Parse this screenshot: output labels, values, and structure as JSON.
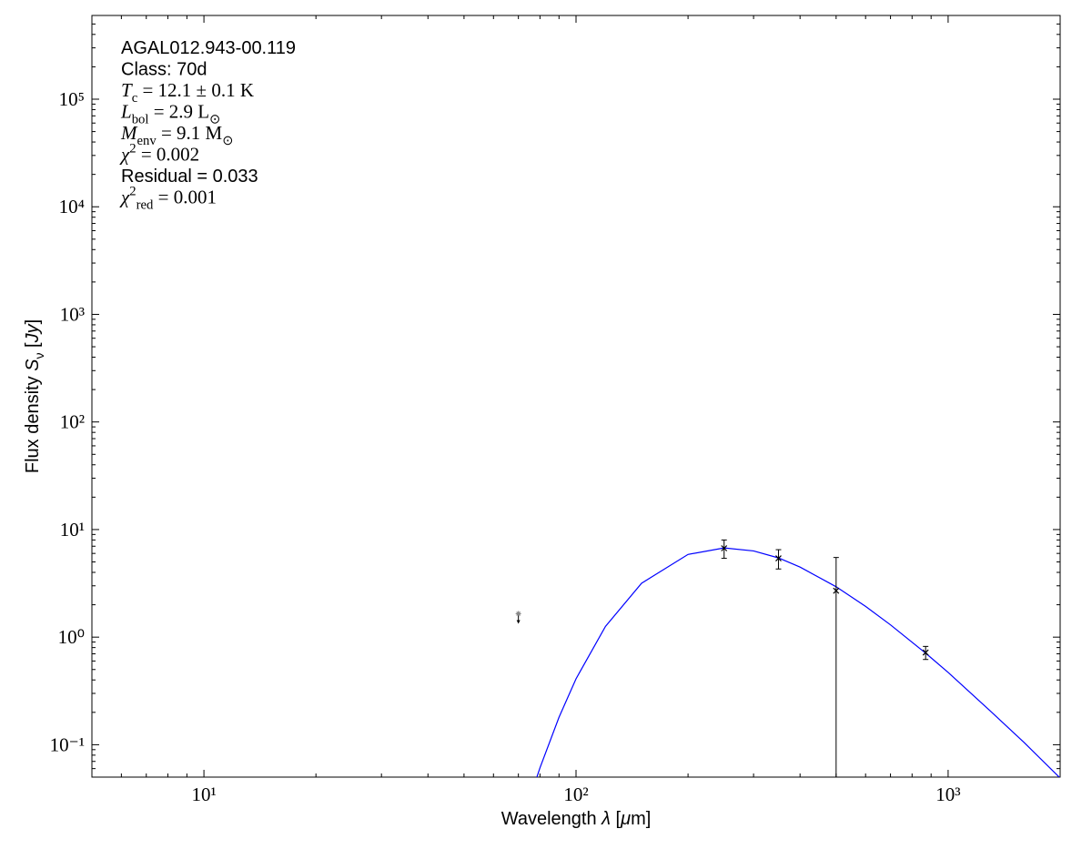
{
  "chart_data": {
    "type": "sed",
    "x_label": [
      {
        "t": "Wavelength ",
        "style": "plain"
      },
      {
        "t": "λ",
        "style": "italic"
      },
      {
        "t": " [",
        "style": "plain"
      },
      {
        "t": "μ",
        "style": "italic"
      },
      {
        "t": "m]",
        "style": "plain"
      }
    ],
    "y_label": [
      {
        "t": "Flux density ",
        "style": "plain"
      },
      {
        "t": "S",
        "style": "italic"
      },
      {
        "t": "ν",
        "style": "sub"
      },
      {
        "t": " [",
        "style": "plain"
      },
      {
        "t": "Jy",
        "style": "italic"
      },
      {
        "t": "]",
        "style": "plain"
      }
    ],
    "annotations": [
      {
        "font": "sans",
        "segments": [
          {
            "t": "AGAL012.943-00.119",
            "style": "plain"
          }
        ]
      },
      {
        "font": "sans",
        "segments": [
          {
            "t": "Class: 70d",
            "style": "plain"
          }
        ]
      },
      {
        "font": "serif",
        "segments": [
          {
            "t": "T",
            "style": "italic"
          },
          {
            "t": "c",
            "style": "sub"
          },
          {
            "t": " = 12.1 ± 0.1 K",
            "style": "plain"
          }
        ]
      },
      {
        "font": "serif",
        "segments": [
          {
            "t": "L",
            "style": "italic"
          },
          {
            "t": "bol",
            "style": "sub"
          },
          {
            "t": " = 2.9 L",
            "style": "plain"
          },
          {
            "t": "⊙",
            "style": "sub"
          }
        ]
      },
      {
        "font": "serif",
        "segments": [
          {
            "t": "M",
            "style": "italic"
          },
          {
            "t": "env",
            "style": "sub"
          },
          {
            "t": " = 9.1 M",
            "style": "plain"
          },
          {
            "t": "⊙",
            "style": "sub"
          }
        ]
      },
      {
        "font": "serif",
        "segments": [
          {
            "t": "χ",
            "style": "italic"
          },
          {
            "t": "2",
            "style": "sup"
          },
          {
            "t": " = 0.002",
            "style": "plain"
          }
        ]
      },
      {
        "font": "sans",
        "segments": [
          {
            "t": "Residual = 0.033",
            "style": "plain"
          }
        ]
      },
      {
        "font": "serif",
        "segments": [
          {
            "t": "χ",
            "style": "italic"
          },
          {
            "t": "2",
            "style": "sup"
          },
          {
            "t": "red",
            "style": "sub"
          },
          {
            "t": " = 0.001",
            "style": "plain"
          }
        ]
      }
    ],
    "xscale": "log",
    "yscale": "log",
    "xlim": [
      5,
      2000
    ],
    "ylim": [
      0.05,
      600000
    ],
    "xticks": [
      {
        "value": 10,
        "label": "10¹"
      },
      {
        "value": 100,
        "label": "10²"
      },
      {
        "value": 1000,
        "label": "10³"
      }
    ],
    "yticks": [
      {
        "value": 0.1,
        "label": "10⁻¹"
      },
      {
        "value": 1,
        "label": "10⁰"
      },
      {
        "value": 10,
        "label": "10¹"
      },
      {
        "value": 100,
        "label": "10²"
      },
      {
        "value": 1000,
        "label": "10³"
      },
      {
        "value": 10000,
        "label": "10⁴"
      },
      {
        "value": 100000,
        "label": "10⁵"
      }
    ],
    "series": [
      {
        "kind": "line",
        "color": "#0000ff",
        "x": [
          78,
          80,
          90,
          100,
          120,
          150,
          200,
          250,
          300,
          350,
          400,
          500,
          600,
          700,
          870,
          1000,
          1300,
          1600,
          2000
        ],
        "values": [
          0.047,
          0.061,
          0.18,
          0.41,
          1.26,
          3.17,
          5.87,
          6.75,
          6.33,
          5.45,
          4.48,
          2.94,
          1.93,
          1.3,
          0.71,
          0.47,
          0.205,
          0.105,
          0.049
        ]
      },
      {
        "kind": "errorbar",
        "color": "#000000",
        "x": [
          250,
          350,
          500,
          870
        ],
        "values": [
          6.7,
          5.4,
          2.7,
          0.72
        ],
        "errors": [
          1.3,
          1.1,
          2.8,
          0.1
        ]
      },
      {
        "kind": "upper_limit",
        "color": "#888888",
        "x": [
          70
        ],
        "values": [
          1.65
        ]
      }
    ]
  }
}
